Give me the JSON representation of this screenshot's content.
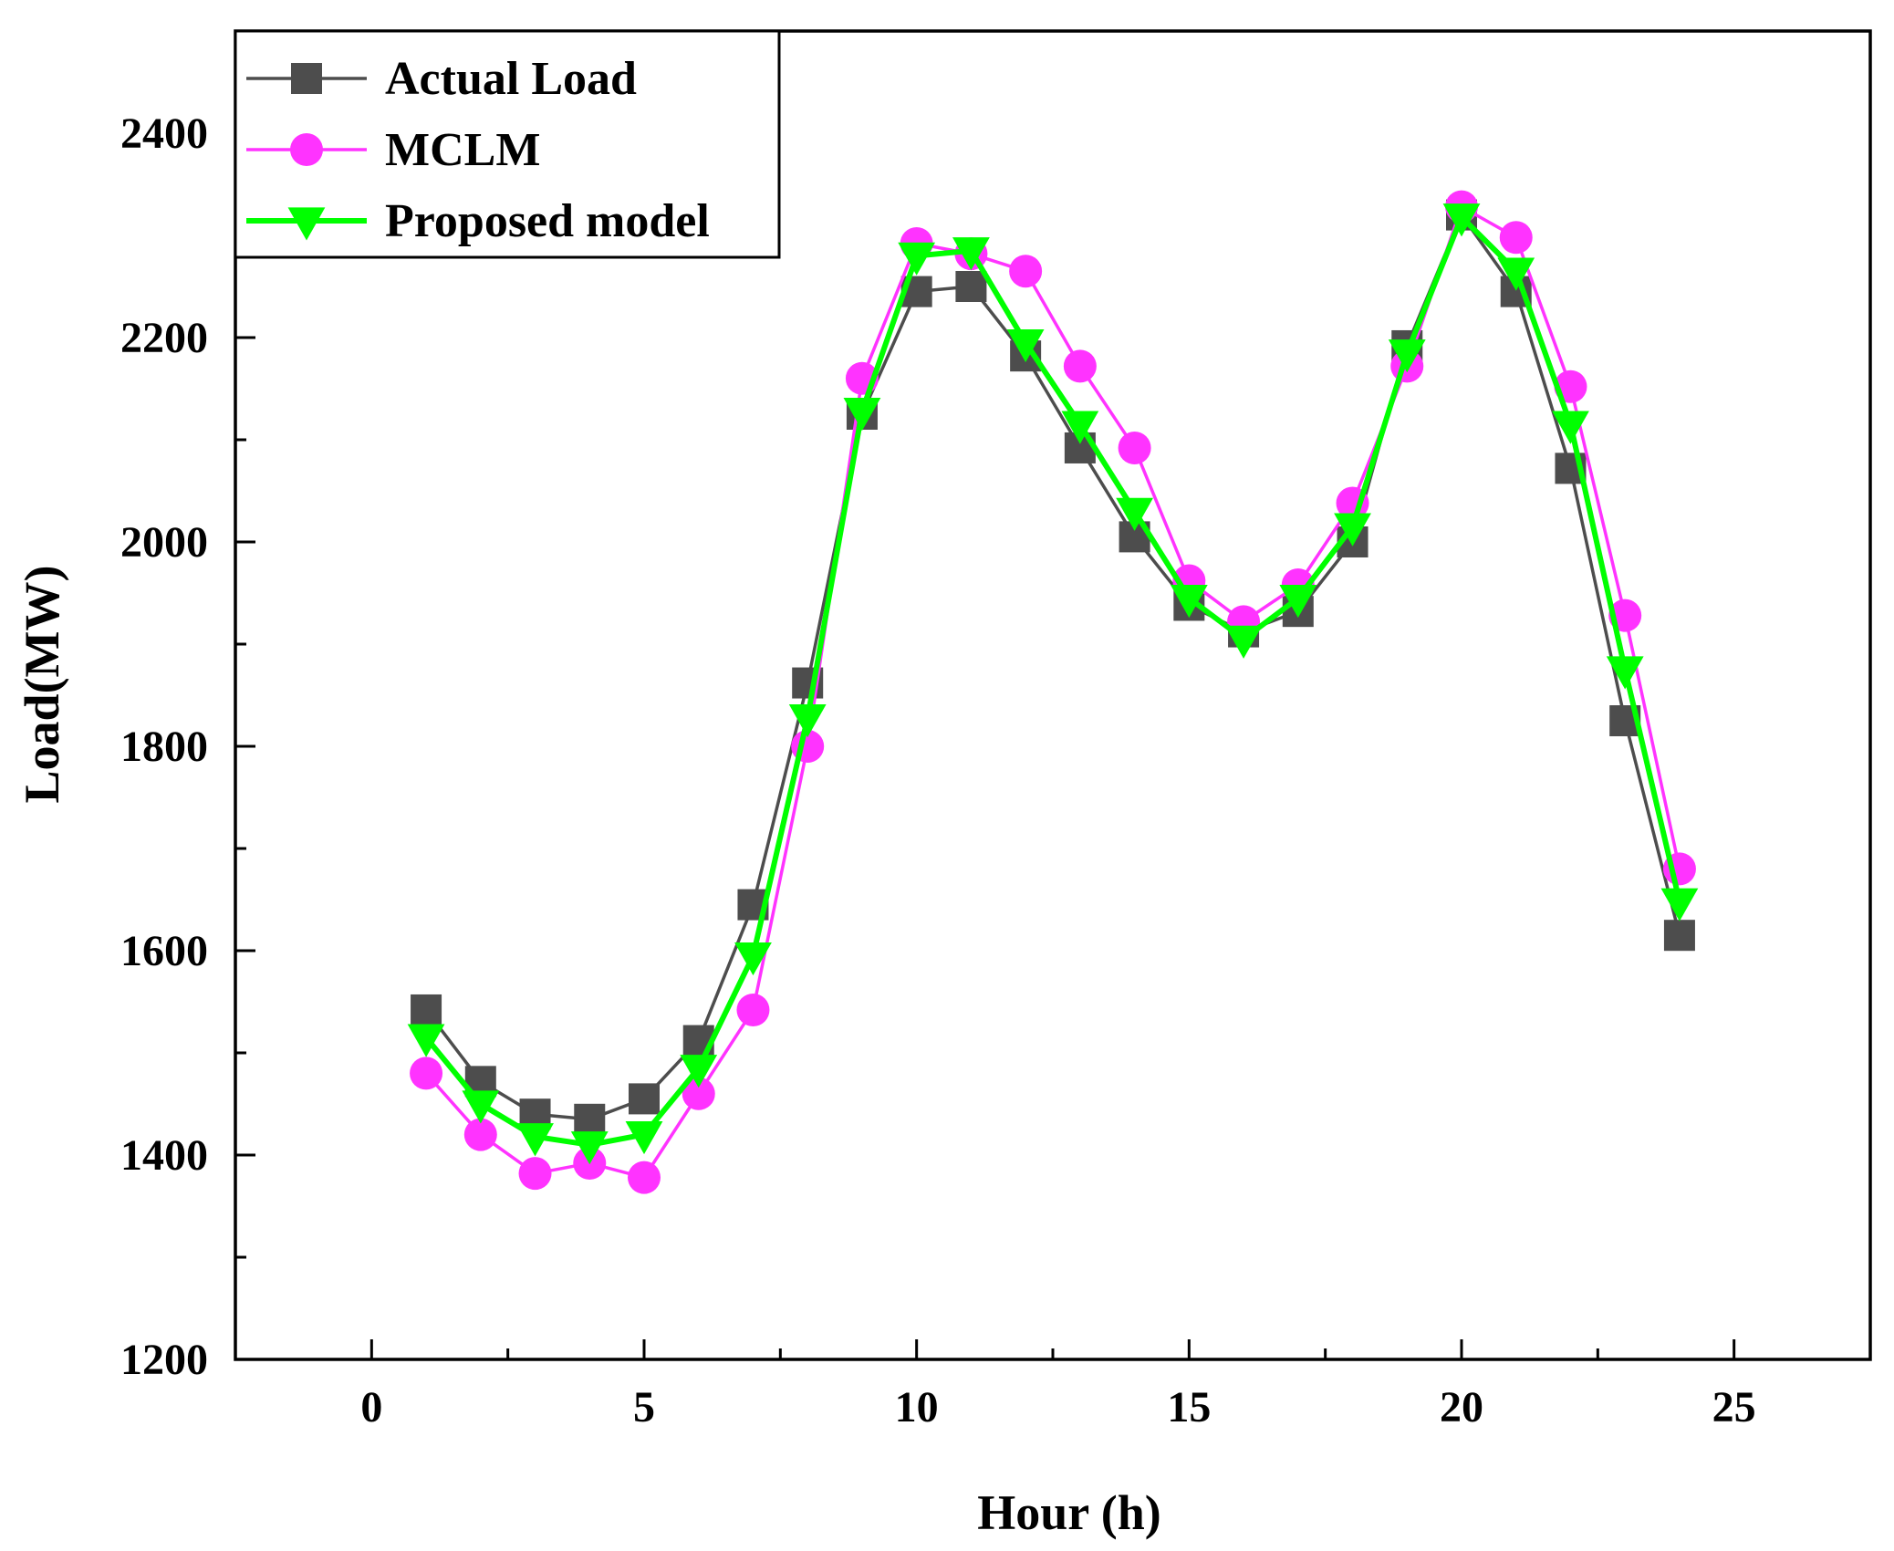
{
  "chart_data": {
    "type": "line",
    "title": "",
    "xlabel": "Hour (h)",
    "ylabel": "Load(MW)",
    "xlim": [
      -2.5,
      27.5
    ],
    "ylim": [
      1200,
      2500
    ],
    "x_ticks": [
      0,
      5,
      10,
      15,
      20,
      25
    ],
    "x_tick_labels": [
      "0",
      "5",
      "10",
      "15",
      "20",
      "25"
    ],
    "y_ticks": [
      1200,
      1400,
      1600,
      1800,
      2000,
      2200,
      2400
    ],
    "y_tick_labels": [
      "1200",
      "1400",
      "1600",
      "1800",
      "2000",
      "2200",
      "2400"
    ],
    "x_minor_step": 2.5,
    "y_minor_step": 100,
    "grid": false,
    "legend_position": "top-left",
    "x": [
      1,
      2,
      3,
      4,
      5,
      6,
      7,
      8,
      9,
      10,
      11,
      12,
      13,
      14,
      15,
      16,
      17,
      18,
      19,
      20,
      21,
      22,
      23,
      24
    ],
    "series": [
      {
        "name": "Actual Load",
        "marker": "square",
        "color": "#4d4d4d",
        "values": [
          1542,
          1472,
          1440,
          1435,
          1455,
          1512,
          1645,
          1862,
          2125,
          2245,
          2250,
          2182,
          2092,
          2005,
          1938,
          1912,
          1932,
          2000,
          2192,
          2320,
          2245,
          2072,
          1825,
          1615
        ]
      },
      {
        "name": "MCLM",
        "marker": "circle",
        "color": "#ff33ff",
        "values": [
          1480,
          1420,
          1382,
          1392,
          1378,
          1460,
          1542,
          1800,
          2160,
          2292,
          2282,
          2265,
          2172,
          2092,
          1962,
          1922,
          1958,
          2038,
          2172,
          2328,
          2298,
          2152,
          1928,
          1680
        ]
      },
      {
        "name": "Proposed model",
        "marker": "triangle-down",
        "color": "#00ff00",
        "values": [
          1515,
          1450,
          1418,
          1410,
          1420,
          1485,
          1595,
          1828,
          2128,
          2280,
          2285,
          2195,
          2115,
          2030,
          1945,
          1905,
          1945,
          2015,
          2185,
          2318,
          2265,
          2115,
          1875,
          1648
        ]
      }
    ]
  }
}
